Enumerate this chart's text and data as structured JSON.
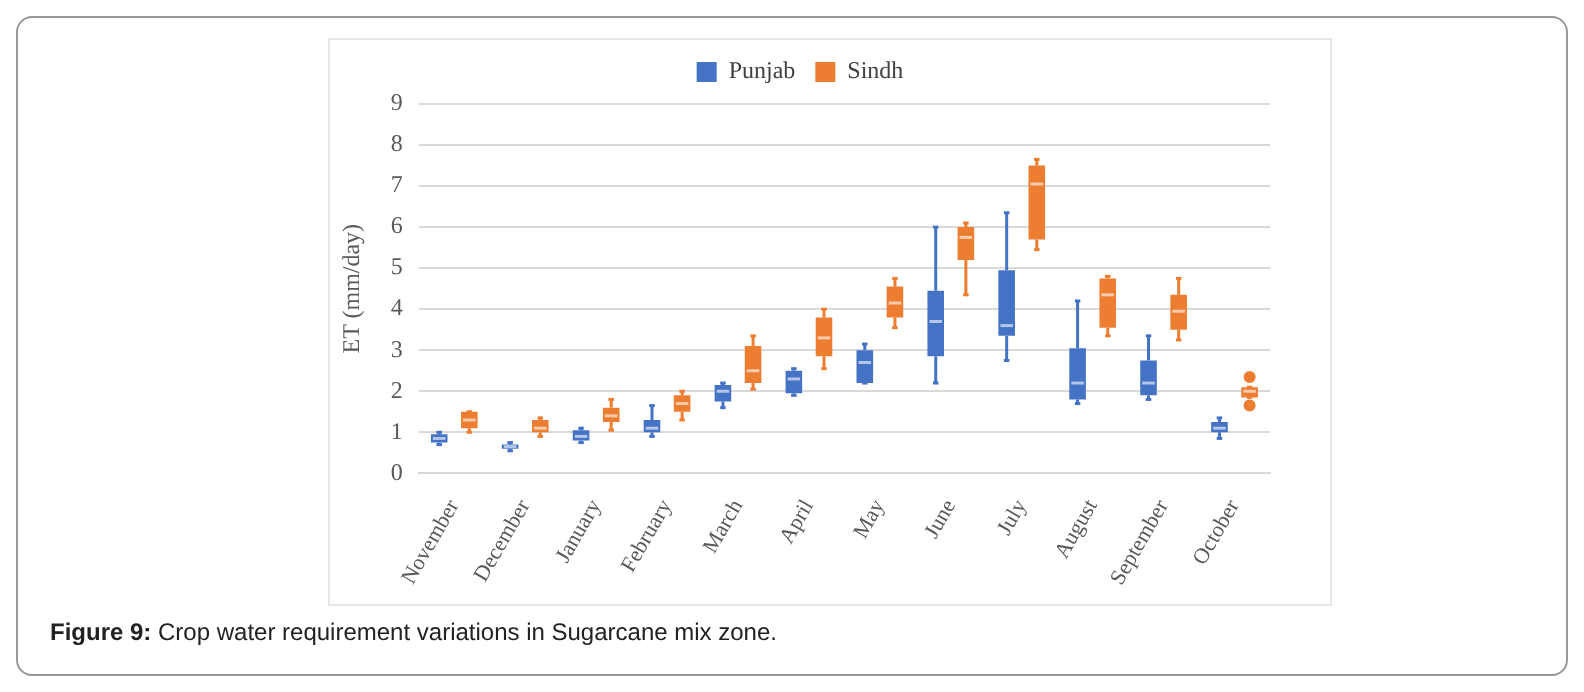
{
  "chart_data": {
    "type": "box",
    "categories": [
      "November",
      "December",
      "January",
      "February",
      "March",
      "April",
      "May",
      "June",
      "July",
      "August",
      "September",
      "October"
    ],
    "ylabel": "ET (mm/day)",
    "ylim": [
      0,
      9
    ],
    "yticks": [
      0,
      1,
      2,
      3,
      4,
      5,
      6,
      7,
      8,
      9
    ],
    "grid": "y",
    "legend": "top",
    "annotations": [
      "Figure 9: Crop water requirement variations in Sugarcane mix zone."
    ],
    "series": [
      {
        "name": "Punjab",
        "color": "#4472c4",
        "boxes": [
          {
            "low": 0.7,
            "q1": 0.75,
            "median": 0.85,
            "q3": 0.95,
            "high": 1.0
          },
          {
            "low": 0.55,
            "q1": 0.6,
            "median": 0.65,
            "q3": 0.7,
            "high": 0.75
          },
          {
            "low": 0.75,
            "q1": 0.8,
            "median": 0.9,
            "q3": 1.05,
            "high": 1.1
          },
          {
            "low": 0.9,
            "q1": 1.0,
            "median": 1.1,
            "q3": 1.3,
            "high": 1.65
          },
          {
            "low": 1.6,
            "q1": 1.75,
            "median": 2.0,
            "q3": 2.15,
            "high": 2.2
          },
          {
            "low": 1.9,
            "q1": 1.95,
            "median": 2.3,
            "q3": 2.5,
            "high": 2.55
          },
          {
            "low": 2.2,
            "q1": 2.2,
            "median": 2.7,
            "q3": 3.0,
            "high": 3.15
          },
          {
            "low": 2.2,
            "q1": 2.85,
            "median": 3.7,
            "q3": 4.45,
            "high": 6.0
          },
          {
            "low": 2.75,
            "q1": 3.35,
            "median": 3.6,
            "q3": 4.95,
            "high": 6.35
          },
          {
            "low": 1.7,
            "q1": 1.8,
            "median": 2.2,
            "q3": 3.05,
            "high": 4.2
          },
          {
            "low": 1.8,
            "q1": 1.9,
            "median": 2.2,
            "q3": 2.75,
            "high": 3.35
          },
          {
            "low": 0.85,
            "q1": 1.0,
            "median": 1.1,
            "q3": 1.25,
            "high": 1.35
          }
        ]
      },
      {
        "name": "Sindh",
        "color": "#ed7d31",
        "boxes": [
          {
            "low": 1.0,
            "q1": 1.1,
            "median": 1.3,
            "q3": 1.5,
            "high": 1.5
          },
          {
            "low": 0.9,
            "q1": 1.0,
            "median": 1.1,
            "q3": 1.3,
            "high": 1.35
          },
          {
            "low": 1.05,
            "q1": 1.25,
            "median": 1.4,
            "q3": 1.6,
            "high": 1.8
          },
          {
            "low": 1.3,
            "q1": 1.5,
            "median": 1.7,
            "q3": 1.9,
            "high": 2.0
          },
          {
            "low": 2.05,
            "q1": 2.2,
            "median": 2.5,
            "q3": 3.1,
            "high": 3.35
          },
          {
            "low": 2.55,
            "q1": 2.85,
            "median": 3.3,
            "q3": 3.8,
            "high": 4.0
          },
          {
            "low": 3.55,
            "q1": 3.8,
            "median": 4.15,
            "q3": 4.55,
            "high": 4.75
          },
          {
            "low": 4.35,
            "q1": 5.2,
            "median": 5.75,
            "q3": 6.0,
            "high": 6.1
          },
          {
            "low": 5.45,
            "q1": 5.7,
            "median": 7.05,
            "q3": 7.5,
            "high": 7.65
          },
          {
            "low": 3.35,
            "q1": 3.55,
            "median": 4.35,
            "q3": 4.75,
            "high": 4.8
          },
          {
            "low": 3.25,
            "q1": 3.5,
            "median": 3.95,
            "q3": 4.35,
            "high": 4.75
          },
          {
            "low": 1.85,
            "q1": 1.85,
            "median": 2.0,
            "q3": 2.1,
            "high": 2.1,
            "outliers": [
              2.35,
              1.65
            ]
          }
        ]
      }
    ]
  }
}
